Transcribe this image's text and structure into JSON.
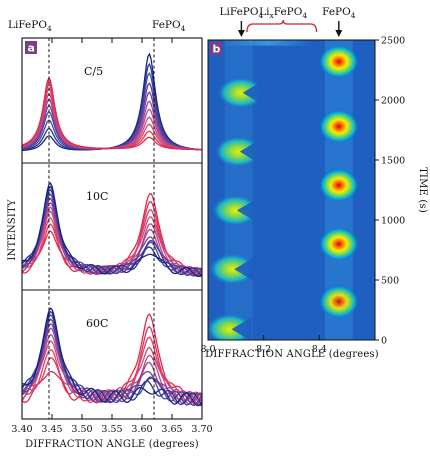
{
  "chart_data": [
    {
      "id": "a",
      "type": "line",
      "panel_letter": "a",
      "xlabel": "DIFFRACTION ANGLE (degrees)",
      "ylabel": "INTENSITY",
      "xlim": [
        3.4,
        3.7
      ],
      "x_ticks": [
        "3.40",
        "3.45",
        "3.50",
        "3.55",
        "3.60",
        "3.65",
        "3.70"
      ],
      "phase_labels": [
        {
          "text": "LiFePO",
          "sub": "4",
          "x": 3.445
        },
        {
          "text": "FePO",
          "sub": "4",
          "x": 3.62
        }
      ],
      "reference_lines_x": [
        3.445,
        3.62
      ],
      "subpanels": [
        {
          "rate": "C/5",
          "peak_a": {
            "x": 3.445,
            "width": 0.012,
            "heights": [
              0.15,
              0.22,
              0.3,
              0.38,
              0.44,
              0.5,
              0.55,
              0.6,
              0.64,
              0.68,
              0.7
            ]
          },
          "peak_b": {
            "x": 3.612,
            "width": 0.013,
            "heights": [
              0.95,
              0.85,
              0.76,
              0.66,
              0.57,
              0.48,
              0.4,
              0.32,
              0.25,
              0.18,
              0.12
            ]
          },
          "baseline": 0.05,
          "noise": 0.0
        },
        {
          "rate": "10C",
          "peak_a": {
            "x": 3.447,
            "width": 0.016,
            "heights": [
              0.42,
              0.48,
              0.54,
              0.6,
              0.64,
              0.68,
              0.72,
              0.76,
              0.8,
              0.83,
              0.86
            ]
          },
          "peak_b": {
            "x": 3.614,
            "width": 0.018,
            "heights": [
              0.78,
              0.7,
              0.62,
              0.55,
              0.48,
              0.42,
              0.36,
              0.32,
              0.28,
              0.24,
              0.2
            ]
          },
          "baseline": 0.08,
          "noise": 0.04
        },
        {
          "rate": "60C",
          "peak_a": {
            "x": 3.448,
            "width": 0.018,
            "heights": [
              0.3,
              0.4,
              0.48,
              0.56,
              0.62,
              0.68,
              0.72,
              0.76,
              0.8,
              0.83,
              0.86
            ]
          },
          "peak_b": {
            "x": 3.612,
            "width": 0.018,
            "heights": [
              0.82,
              0.7,
              0.6,
              0.5,
              0.42,
              0.34,
              0.28,
              0.22,
              0.18,
              0.14,
              0.1
            ]
          },
          "baseline": 0.1,
          "noise": 0.06
        }
      ],
      "series_colors": [
        "#1a237e",
        "#283593",
        "#3949ab",
        "#5c3d99",
        "#7b3f9a",
        "#9c4a9a",
        "#b84a8a",
        "#cc4a7a",
        "#d9436a",
        "#e0335a",
        "#e5284f"
      ]
    },
    {
      "id": "b",
      "type": "heatmap",
      "panel_letter": "b",
      "xlabel": "DIFFRACTION ANGLE (degrees)",
      "ylabel": "TIME (s)",
      "xlim": [
        8.0,
        8.6
      ],
      "ylim": [
        0,
        2500
      ],
      "x_ticks": [
        "8.0",
        "8.2",
        "8.4"
      ],
      "y_ticks": [
        "0",
        "500",
        "1000",
        "1500",
        "2000",
        "2500"
      ],
      "phase_labels": [
        {
          "text": "LiFePO",
          "sub": "4",
          "x": 8.12,
          "arrow": true
        },
        {
          "text": "Li",
          "xsub": "x",
          "tail": "FePO",
          "sub": "4",
          "x": 8.27,
          "bracket": [
            8.14,
            8.39
          ],
          "color": "#d0212a"
        },
        {
          "text": "FePO",
          "sub": "4",
          "x": 8.47,
          "arrow": true
        }
      ],
      "background_color": "#1e5fc0",
      "colorscale": [
        "#1e5fc0",
        "#00b4d8",
        "#7ed957",
        "#f0f000",
        "#ff7a00",
        "#e00000"
      ],
      "fepo4_spots": [
        {
          "x": 8.47,
          "y": 2320,
          "peak": 1.0
        },
        {
          "x": 8.47,
          "y": 1780,
          "peak": 1.0
        },
        {
          "x": 8.47,
          "y": 1290,
          "peak": 1.0
        },
        {
          "x": 8.47,
          "y": 800,
          "peak": 1.0
        },
        {
          "x": 8.47,
          "y": 320,
          "peak": 0.9
        }
      ],
      "lifepo4_chevrons": [
        {
          "x": 8.11,
          "y": 2060
        },
        {
          "x": 8.1,
          "y": 1570
        },
        {
          "x": 8.09,
          "y": 1080
        },
        {
          "x": 8.08,
          "y": 590
        },
        {
          "x": 8.07,
          "y": 90
        }
      ]
    }
  ]
}
